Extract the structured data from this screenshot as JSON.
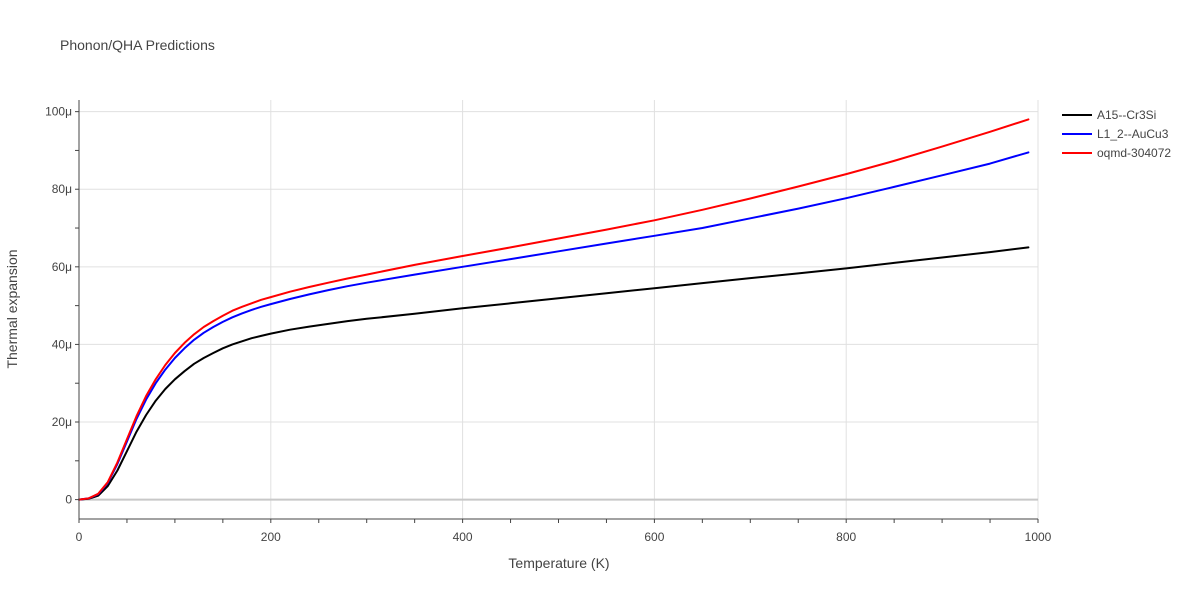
{
  "chart_data": {
    "type": "line",
    "title": "Phonon/QHA Predictions",
    "xlabel": "Temperature (K)",
    "ylabel": "Thermal expansion",
    "xlim": [
      0,
      1000
    ],
    "ylim": [
      -5,
      103
    ],
    "x_ticks": [
      {
        "value": 0,
        "label": "0"
      },
      {
        "value": 200,
        "label": "200"
      },
      {
        "value": 400,
        "label": "400"
      },
      {
        "value": 600,
        "label": "600"
      },
      {
        "value": 800,
        "label": "800"
      },
      {
        "value": 1000,
        "label": "1000"
      }
    ],
    "y_ticks": [
      {
        "value": 0,
        "label": "0"
      },
      {
        "value": 20,
        "label": "20μ"
      },
      {
        "value": 40,
        "label": "40μ"
      },
      {
        "value": 60,
        "label": "60μ"
      },
      {
        "value": 80,
        "label": "80μ"
      },
      {
        "value": 100,
        "label": "100μ"
      }
    ],
    "grid": true,
    "legend_position": "top-right",
    "series": [
      {
        "name": "A15--Cr3Si",
        "color": "#000000",
        "x": [
          0,
          10,
          20,
          30,
          40,
          50,
          60,
          70,
          80,
          90,
          100,
          110,
          120,
          130,
          140,
          150,
          160,
          170,
          180,
          190,
          200,
          220,
          240,
          260,
          280,
          300,
          350,
          400,
          450,
          500,
          550,
          600,
          650,
          700,
          750,
          800,
          850,
          900,
          950,
          990
        ],
        "y": [
          0,
          0.2,
          1.0,
          3.5,
          7.5,
          12.5,
          17.5,
          21.8,
          25.5,
          28.5,
          31.0,
          33.1,
          35.0,
          36.5,
          37.8,
          39.0,
          40.0,
          40.8,
          41.6,
          42.2,
          42.8,
          43.8,
          44.6,
          45.3,
          46.0,
          46.6,
          47.9,
          49.3,
          50.6,
          51.9,
          53.2,
          54.5,
          55.8,
          57.1,
          58.3,
          59.6,
          61.0,
          62.4,
          63.8,
          65.0
        ]
      },
      {
        "name": "L1_2--AuCu3",
        "color": "#0000ff",
        "x": [
          0,
          10,
          20,
          30,
          40,
          50,
          60,
          70,
          80,
          90,
          100,
          110,
          120,
          130,
          140,
          150,
          160,
          170,
          180,
          190,
          200,
          220,
          240,
          260,
          280,
          300,
          350,
          400,
          450,
          500,
          550,
          600,
          650,
          700,
          750,
          800,
          850,
          900,
          950,
          990
        ],
        "y": [
          0,
          0.3,
          1.4,
          4.3,
          9.2,
          15.0,
          20.8,
          25.8,
          30.0,
          33.5,
          36.5,
          39.0,
          41.2,
          43.0,
          44.5,
          45.8,
          47.0,
          48.0,
          48.9,
          49.7,
          50.4,
          51.7,
          52.9,
          54.0,
          55.0,
          55.9,
          58.0,
          60.0,
          62.0,
          64.0,
          66.0,
          68.0,
          70.0,
          72.5,
          75.0,
          77.7,
          80.6,
          83.6,
          86.6,
          89.5
        ]
      },
      {
        "name": "oqmd-304072",
        "color": "#ff0000",
        "x": [
          0,
          10,
          20,
          30,
          40,
          50,
          60,
          70,
          80,
          90,
          100,
          110,
          120,
          130,
          140,
          150,
          160,
          170,
          180,
          190,
          200,
          220,
          240,
          260,
          280,
          300,
          350,
          400,
          450,
          500,
          550,
          600,
          650,
          700,
          750,
          800,
          850,
          900,
          950,
          990
        ],
        "y": [
          0,
          0.3,
          1.5,
          4.5,
          9.6,
          15.6,
          21.5,
          26.7,
          31.0,
          34.7,
          37.8,
          40.4,
          42.6,
          44.5,
          46.0,
          47.4,
          48.7,
          49.7,
          50.6,
          51.5,
          52.2,
          53.6,
          54.8,
          55.9,
          57.0,
          58.0,
          60.5,
          62.8,
          65.0,
          67.3,
          69.6,
          72.0,
          74.7,
          77.6,
          80.7,
          83.9,
          87.3,
          91.0,
          94.8,
          98.0
        ]
      }
    ]
  }
}
